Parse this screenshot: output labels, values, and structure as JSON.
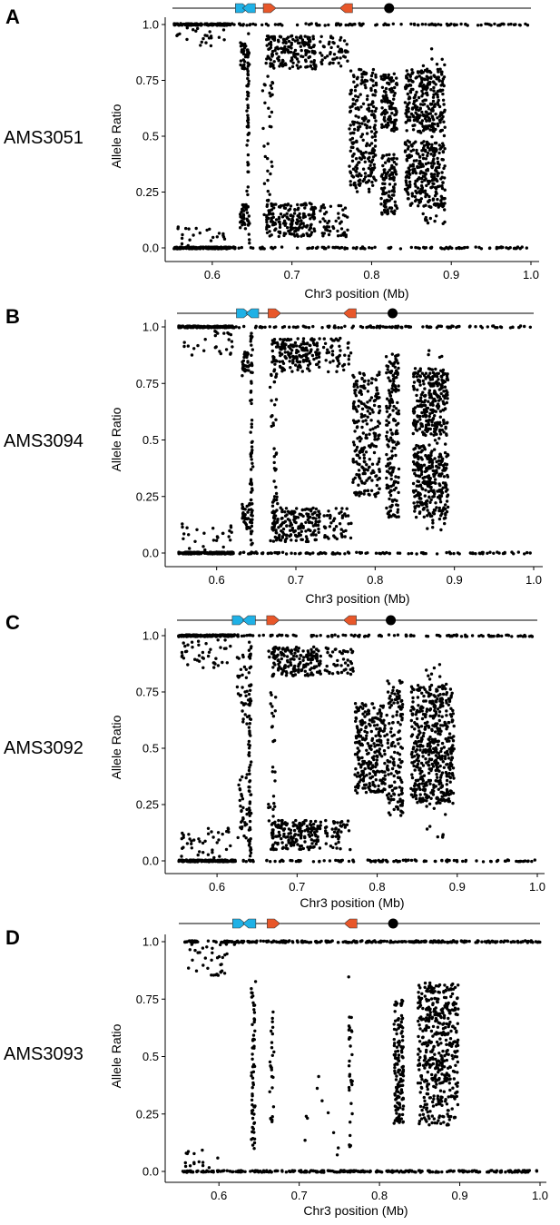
{
  "colors": {
    "points": "#000000",
    "blue_arrow": "#1fb1e6",
    "orange_arrow": "#e8572a",
    "axis": "#000000"
  },
  "panels": [
    {
      "letter": "A",
      "sample": "AMS3051"
    },
    {
      "letter": "B",
      "sample": "AMS3094"
    },
    {
      "letter": "C",
      "sample": "AMS3092"
    },
    {
      "letter": "D",
      "sample": "AMS3093"
    }
  ],
  "chart_data": [
    {
      "type": "scatter",
      "title": "",
      "xlabel": "Chr3 position (Mb)",
      "ylabel": "Allele Ratio",
      "xlim": [
        0.55,
        1.0
      ],
      "ylim": [
        0,
        1
      ],
      "xticks": [
        "0.6",
        "0.7",
        "0.8",
        "0.9",
        "1.0"
      ],
      "yticks": [
        "0.0",
        "0.25",
        "0.5",
        "0.75",
        "1.0"
      ],
      "grid": false,
      "gene_track": {
        "line_range": [
          0.55,
          1.0
        ],
        "markers": [
          {
            "type": "arrow-right",
            "x": 0.637,
            "color": "blue"
          },
          {
            "type": "arrow-left",
            "x": 0.646,
            "color": "blue"
          },
          {
            "type": "arrow-right",
            "x": 0.672,
            "color": "orange"
          },
          {
            "type": "arrow-left",
            "x": 0.768,
            "color": "orange"
          },
          {
            "type": "dot",
            "x": 0.822,
            "color": "black"
          }
        ]
      },
      "data_regions": [
        {
          "x": [
            0.552,
            0.622
          ],
          "y": [
            1.0,
            1.0
          ],
          "n": 160,
          "jx": 0,
          "jy": 0.004
        },
        {
          "x": [
            0.552,
            0.622
          ],
          "y": [
            0.0,
            0.0
          ],
          "n": 160,
          "jx": 0,
          "jy": 0.004
        },
        {
          "x": [
            0.555,
            0.62
          ],
          "y": [
            0.9,
            0.99
          ],
          "n": 22
        },
        {
          "x": [
            0.555,
            0.62
          ],
          "y": [
            0.01,
            0.1
          ],
          "n": 22
        },
        {
          "x": [
            0.622,
            1.0
          ],
          "y": [
            1.0,
            1.0
          ],
          "n": 110,
          "jx": 0,
          "jy": 0.004
        },
        {
          "x": [
            0.622,
            1.0
          ],
          "y": [
            0.0,
            0.0
          ],
          "n": 110,
          "jx": 0,
          "jy": 0.004
        },
        {
          "x": [
            0.635,
            0.643
          ],
          "y": [
            0.8,
            0.92
          ],
          "n": 30
        },
        {
          "x": [
            0.635,
            0.643
          ],
          "y": [
            0.08,
            0.2
          ],
          "n": 30
        },
        {
          "x": [
            0.644,
            0.646
          ],
          "y": [
            0.02,
            0.98
          ],
          "n": 70,
          "jx": 0.001
        },
        {
          "x": [
            0.665,
            0.675
          ],
          "y": [
            0.05,
            0.95
          ],
          "n": 45,
          "jx": 0.002
        },
        {
          "x": [
            0.668,
            0.73
          ],
          "y": [
            0.8,
            0.95
          ],
          "n": 180
        },
        {
          "x": [
            0.668,
            0.73
          ],
          "y": [
            0.05,
            0.2
          ],
          "n": 180
        },
        {
          "x": [
            0.735,
            0.77
          ],
          "y": [
            0.8,
            0.95
          ],
          "n": 50
        },
        {
          "x": [
            0.735,
            0.77
          ],
          "y": [
            0.05,
            0.2
          ],
          "n": 50
        },
        {
          "x": [
            0.772,
            0.806
          ],
          "y": [
            0.25,
            0.8
          ],
          "n": 230
        },
        {
          "x": [
            0.812,
            0.832
          ],
          "y": [
            0.52,
            0.78
          ],
          "n": 110
        },
        {
          "x": [
            0.812,
            0.832
          ],
          "y": [
            0.15,
            0.42
          ],
          "n": 110
        },
        {
          "x": [
            0.842,
            0.892
          ],
          "y": [
            0.52,
            0.8
          ],
          "n": 260
        },
        {
          "x": [
            0.842,
            0.892
          ],
          "y": [
            0.18,
            0.48
          ],
          "n": 260
        },
        {
          "x": [
            0.86,
            0.892
          ],
          "y": [
            0.1,
            0.9
          ],
          "n": 60
        }
      ]
    },
    {
      "type": "scatter",
      "title": "",
      "xlabel": "Chr3 position (Mb)",
      "ylabel": "Allele Ratio",
      "xlim": [
        0.55,
        1.0
      ],
      "ylim": [
        0,
        1
      ],
      "xticks": [
        "0.6",
        "0.7",
        "0.8",
        "0.9",
        "1.0"
      ],
      "yticks": [
        "0.0",
        "0.25",
        "0.5",
        "0.75",
        "1.0"
      ],
      "grid": false,
      "gene_track": {
        "line_range": [
          0.55,
          1.0
        ],
        "markers": [
          {
            "type": "arrow-right",
            "x": 0.633,
            "color": "blue"
          },
          {
            "type": "arrow-left",
            "x": 0.645,
            "color": "blue"
          },
          {
            "type": "arrow-right",
            "x": 0.673,
            "color": "orange"
          },
          {
            "type": "arrow-left",
            "x": 0.768,
            "color": "orange"
          },
          {
            "type": "dot",
            "x": 0.822,
            "color": "black"
          }
        ]
      },
      "data_regions": [
        {
          "x": [
            0.552,
            0.622
          ],
          "y": [
            1.0,
            1.0
          ],
          "n": 160,
          "jx": 0,
          "jy": 0.004
        },
        {
          "x": [
            0.552,
            0.622
          ],
          "y": [
            0.0,
            0.0
          ],
          "n": 160,
          "jx": 0,
          "jy": 0.004
        },
        {
          "x": [
            0.555,
            0.62
          ],
          "y": [
            0.86,
            0.99
          ],
          "n": 26
        },
        {
          "x": [
            0.555,
            0.62
          ],
          "y": [
            0.01,
            0.14
          ],
          "n": 26
        },
        {
          "x": [
            0.622,
            1.0
          ],
          "y": [
            1.0,
            1.0
          ],
          "n": 110,
          "jx": 0,
          "jy": 0.004
        },
        {
          "x": [
            0.622,
            1.0
          ],
          "y": [
            0.0,
            0.0
          ],
          "n": 110,
          "jx": 0,
          "jy": 0.004
        },
        {
          "x": [
            0.632,
            0.642
          ],
          "y": [
            0.78,
            0.9
          ],
          "n": 30
        },
        {
          "x": [
            0.632,
            0.642
          ],
          "y": [
            0.1,
            0.22
          ],
          "n": 30
        },
        {
          "x": [
            0.643,
            0.645
          ],
          "y": [
            0.02,
            0.98
          ],
          "n": 70,
          "jx": 0.001
        },
        {
          "x": [
            0.668,
            0.676
          ],
          "y": [
            0.05,
            0.95
          ],
          "n": 45,
          "jx": 0.002
        },
        {
          "x": [
            0.67,
            0.73
          ],
          "y": [
            0.8,
            0.95
          ],
          "n": 170
        },
        {
          "x": [
            0.67,
            0.73
          ],
          "y": [
            0.05,
            0.2
          ],
          "n": 170
        },
        {
          "x": [
            0.735,
            0.77
          ],
          "y": [
            0.8,
            0.95
          ],
          "n": 45
        },
        {
          "x": [
            0.735,
            0.77
          ],
          "y": [
            0.05,
            0.2
          ],
          "n": 45
        },
        {
          "x": [
            0.772,
            0.806
          ],
          "y": [
            0.25,
            0.8
          ],
          "n": 230
        },
        {
          "x": [
            0.814,
            0.83
          ],
          "y": [
            0.15,
            0.88
          ],
          "n": 180
        },
        {
          "x": [
            0.848,
            0.892
          ],
          "y": [
            0.52,
            0.82
          ],
          "n": 250
        },
        {
          "x": [
            0.848,
            0.892
          ],
          "y": [
            0.15,
            0.48
          ],
          "n": 250
        },
        {
          "x": [
            0.86,
            0.892
          ],
          "y": [
            0.1,
            0.9
          ],
          "n": 60
        }
      ]
    },
    {
      "type": "scatter",
      "title": "",
      "xlabel": "Chr3 position (Mb)",
      "ylabel": "Allele Ratio",
      "xlim": [
        0.55,
        1.0
      ],
      "ylim": [
        0,
        1
      ],
      "xticks": [
        "0.6",
        "0.7",
        "0.8",
        "0.9",
        "1.0"
      ],
      "yticks": [
        "0.0",
        "0.25",
        "0.5",
        "0.75",
        "1.0"
      ],
      "grid": false,
      "gene_track": {
        "line_range": [
          0.55,
          1.0
        ],
        "markers": [
          {
            "type": "arrow-right",
            "x": 0.627,
            "color": "blue"
          },
          {
            "type": "arrow-left",
            "x": 0.64,
            "color": "blue"
          },
          {
            "type": "arrow-right",
            "x": 0.67,
            "color": "orange"
          },
          {
            "type": "arrow-left",
            "x": 0.766,
            "color": "orange"
          },
          {
            "type": "dot",
            "x": 0.817,
            "color": "black"
          }
        ]
      },
      "data_regions": [
        {
          "x": [
            0.552,
            0.622
          ],
          "y": [
            1.0,
            1.0
          ],
          "n": 160,
          "jx": 0,
          "jy": 0.004
        },
        {
          "x": [
            0.552,
            0.622
          ],
          "y": [
            0.0,
            0.0
          ],
          "n": 160,
          "jx": 0,
          "jy": 0.004
        },
        {
          "x": [
            0.555,
            0.62
          ],
          "y": [
            0.85,
            0.99
          ],
          "n": 40
        },
        {
          "x": [
            0.555,
            0.62
          ],
          "y": [
            0.01,
            0.15
          ],
          "n": 40
        },
        {
          "x": [
            0.622,
            1.0
          ],
          "y": [
            1.0,
            1.0
          ],
          "n": 110,
          "jx": 0,
          "jy": 0.004
        },
        {
          "x": [
            0.622,
            1.0
          ],
          "y": [
            0.0,
            0.0
          ],
          "n": 110,
          "jx": 0,
          "jy": 0.004
        },
        {
          "x": [
            0.625,
            0.638
          ],
          "y": [
            0.6,
            0.95
          ],
          "n": 30
        },
        {
          "x": [
            0.625,
            0.638
          ],
          "y": [
            0.05,
            0.4
          ],
          "n": 30
        },
        {
          "x": [
            0.64,
            0.642
          ],
          "y": [
            0.02,
            0.98
          ],
          "n": 80,
          "jx": 0.001
        },
        {
          "x": [
            0.665,
            0.673
          ],
          "y": [
            0.05,
            0.95
          ],
          "n": 35,
          "jx": 0.002
        },
        {
          "x": [
            0.668,
            0.73
          ],
          "y": [
            0.82,
            0.95
          ],
          "n": 170
        },
        {
          "x": [
            0.668,
            0.73
          ],
          "y": [
            0.05,
            0.18
          ],
          "n": 170
        },
        {
          "x": [
            0.735,
            0.77
          ],
          "y": [
            0.82,
            0.95
          ],
          "n": 45
        },
        {
          "x": [
            0.735,
            0.77
          ],
          "y": [
            0.05,
            0.18
          ],
          "n": 45
        },
        {
          "x": [
            0.772,
            0.81
          ],
          "y": [
            0.3,
            0.7
          ],
          "n": 260
        },
        {
          "x": [
            0.812,
            0.832
          ],
          "y": [
            0.2,
            0.8
          ],
          "n": 150
        },
        {
          "x": [
            0.842,
            0.896
          ],
          "y": [
            0.25,
            0.78
          ],
          "n": 450
        },
        {
          "x": [
            0.86,
            0.892
          ],
          "y": [
            0.1,
            0.9
          ],
          "n": 60
        }
      ]
    },
    {
      "type": "scatter",
      "title": "",
      "xlabel": "Chr3 position (Mb)",
      "ylabel": "Allele Ratio",
      "xlim": [
        0.55,
        1.0
      ],
      "ylim": [
        0,
        1
      ],
      "xticks": [
        "0.6",
        "0.7",
        "0.8",
        "0.9",
        "1.0"
      ],
      "yticks": [
        "0.0",
        "0.25",
        "0.5",
        "0.75",
        "1.0"
      ],
      "grid": false,
      "gene_track": {
        "line_range": [
          0.55,
          1.0
        ],
        "markers": [
          {
            "type": "arrow-right",
            "x": 0.625,
            "color": "blue"
          },
          {
            "type": "arrow-left",
            "x": 0.638,
            "color": "blue"
          },
          {
            "type": "arrow-right",
            "x": 0.668,
            "color": "orange"
          },
          {
            "type": "arrow-left",
            "x": 0.764,
            "color": "orange"
          },
          {
            "type": "dot",
            "x": 0.817,
            "color": "black"
          }
        ]
      },
      "data_regions": [
        {
          "x": [
            0.552,
            1.0
          ],
          "y": [
            1.0,
            1.0
          ],
          "n": 300,
          "jx": 0,
          "jy": 0.004
        },
        {
          "x": [
            0.552,
            1.0
          ],
          "y": [
            0.0,
            0.0
          ],
          "n": 300,
          "jx": 0,
          "jy": 0.004
        },
        {
          "x": [
            0.555,
            0.62
          ],
          "y": [
            0.85,
            0.99
          ],
          "n": 35
        },
        {
          "x": [
            0.555,
            0.6
          ],
          "y": [
            0.01,
            0.1
          ],
          "n": 15
        },
        {
          "x": [
            0.641,
            0.645
          ],
          "y": [
            0.1,
            0.85
          ],
          "n": 60,
          "jx": 0.001
        },
        {
          "x": [
            0.664,
            0.668
          ],
          "y": [
            0.2,
            0.7
          ],
          "n": 25,
          "jx": 0.001
        },
        {
          "x": [
            0.7,
            0.75
          ],
          "y": [
            0.05,
            0.6
          ],
          "n": 10
        },
        {
          "x": [
            0.762,
            0.766
          ],
          "y": [
            0.1,
            0.85
          ],
          "n": 30,
          "jx": 0.001
        },
        {
          "x": [
            0.818,
            0.83
          ],
          "y": [
            0.2,
            0.75
          ],
          "n": 150
        },
        {
          "x": [
            0.848,
            0.898
          ],
          "y": [
            0.2,
            0.82
          ],
          "n": 450
        }
      ]
    }
  ]
}
